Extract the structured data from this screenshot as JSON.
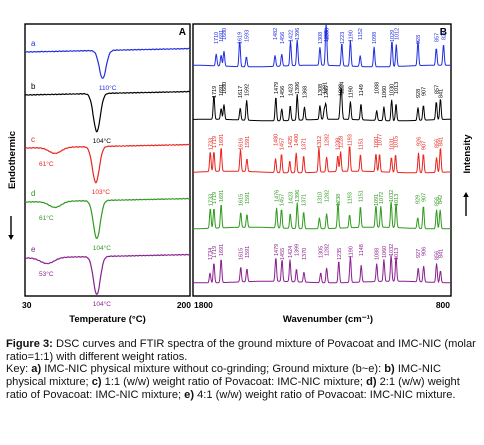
{
  "chart_data": [
    {
      "panel": "A",
      "type": "line",
      "xlabel": "Temperature (°C)",
      "ylabel": "Endothermic",
      "xlim": [
        30,
        200
      ],
      "x_tick_labels": [
        "30",
        "200"
      ],
      "grid": false,
      "series": [
        {
          "label": "a",
          "color": "#1f2de0",
          "peaks": [
            {
              "label": "110°C",
              "x": 110
            }
          ]
        },
        {
          "label": "b",
          "color": "#000000",
          "peaks": [
            {
              "label": "104°C",
              "x": 104
            }
          ]
        },
        {
          "label": "c",
          "color": "#e8251f",
          "peaks": [
            {
              "label": "61°C",
              "x": 61
            },
            {
              "label": "103°C",
              "x": 103
            }
          ]
        },
        {
          "label": "d",
          "color": "#2f9a1e",
          "peaks": [
            {
              "label": "61°C",
              "x": 61
            },
            {
              "label": "104°C",
              "x": 104
            }
          ]
        },
        {
          "label": "e",
          "color": "#8a1f8f",
          "peaks": [
            {
              "label": "53°C",
              "x": 53
            },
            {
              "label": "104°C",
              "x": 104
            }
          ]
        }
      ]
    },
    {
      "panel": "B",
      "type": "line",
      "xlabel": "Wavenumber (cm⁻¹)",
      "ylabel": "Intensity",
      "xlim": [
        1800,
        800
      ],
      "x_tick_labels": [
        "1800",
        "800"
      ],
      "grid": false,
      "series": [
        {
          "label": "a",
          "color": "#1f2de0",
          "peaks": [
            1710,
            1691,
            1680,
            1619,
            1593,
            1482,
            1456,
            1422,
            1396,
            1308,
            1285,
            1283,
            1223,
            1190,
            1152,
            1098,
            1029,
            1012,
            928,
            857,
            829
          ]
        },
        {
          "label": "b",
          "color": "#000000",
          "peaks": [
            1719,
            1691,
            1680,
            1617,
            1592,
            1479,
            1456,
            1423,
            1396,
            1368,
            1308,
            1291,
            1285,
            1228,
            1224,
            1190,
            1149,
            1088,
            1060,
            1030,
            1013,
            928,
            907,
            857,
            841
          ]
        },
        {
          "label": "c",
          "color": "#e8251f",
          "peaks": [
            1733,
            1719,
            1691,
            1616,
            1591,
            1480,
            1457,
            1425,
            1400,
            1371,
            1312,
            1282,
            1239,
            1228,
            1193,
            1151,
            1091,
            1077,
            1031,
            1015,
            926,
            907,
            856,
            841
          ]
        },
        {
          "label": "d",
          "color": "#2f9a1e",
          "peaks": [
            1733,
            1719,
            1691,
            1615,
            1591,
            1476,
            1457,
            1423,
            1396,
            1371,
            1310,
            1282,
            1238,
            1193,
            1151,
            1091,
            1072,
            1032,
            1013,
            929,
            907,
            856,
            842
          ]
        },
        {
          "label": "e",
          "color": "#8a1f8f",
          "peaks": [
            1734,
            1719,
            1691,
            1615,
            1591,
            1479,
            1455,
            1424,
            1399,
            1370,
            1305,
            1282,
            1235,
            1190,
            1148,
            1088,
            1060,
            1032,
            1013,
            927,
            906,
            856,
            841
          ]
        }
      ]
    }
  ],
  "caption": {
    "figure_label": "Figure 3:",
    "title_text": " DSC curves and FTIR spectra of the ground mixture of Povacoat and IMC-NIC (molar ratio=1:1) with different weight ratios.",
    "key_intro": "Key: ",
    "key_a": "a)",
    "key_a_text": " IMC-NIC physical mixture without co-grinding; Ground mixture (b~e): ",
    "key_b": "b)",
    "key_b_text": " IMC-NIC physical mixture; ",
    "key_c": "c)",
    "key_c_text": " 1:1 (w/w) weight ratio of Povacoat: IMC-NIC mixture; ",
    "key_d": "d)",
    "key_d_text": " 2:1 (w/w) weight ratio of Povacoat: IMC-NIC mixture; ",
    "key_e": "e)",
    "key_e_text": " 4:1 (w/w) weight ratio of Povacoat: IMC-NIC mixture."
  }
}
